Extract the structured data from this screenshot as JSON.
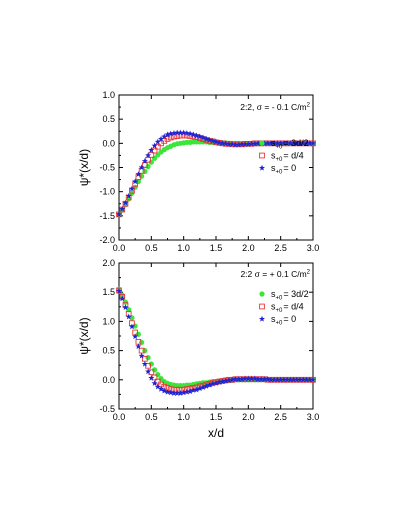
{
  "chart_data": [
    {
      "type": "scatter",
      "annotation": "2:2, σ = - 0.1 C/m",
      "annotation_sup": "2",
      "xlabel": "",
      "ylabel": "ψ*(x/d)",
      "xlim": [
        0.0,
        3.0
      ],
      "ylim": [
        -2.0,
        1.0
      ],
      "xticks": [
        "0.0",
        "0.5",
        "1.0",
        "1.5",
        "2.0",
        "2.5",
        "3.0"
      ],
      "yticks": [
        "-2.0",
        "-1.5",
        "-1.0",
        "-0.5",
        "0.0",
        "0.5",
        "1.0"
      ],
      "legend_position": "right",
      "series": [
        {
          "name": "s+0 = 3d/2",
          "legend_main": "s",
          "legend_sub": "+0",
          "legend_rest": "= 3d/2",
          "marker": "circle-filled",
          "color": "#39e639",
          "x": [
            0.0,
            0.05,
            0.1,
            0.15,
            0.2,
            0.25,
            0.3,
            0.35,
            0.4,
            0.45,
            0.5,
            0.55,
            0.6,
            0.65,
            0.7,
            0.75,
            0.8,
            0.85,
            0.9,
            0.95,
            1.0,
            1.05,
            1.1,
            1.15,
            1.2,
            1.25,
            1.3,
            1.35,
            1.4,
            1.45,
            1.5,
            1.55,
            1.6,
            1.65,
            1.7,
            1.75,
            1.8,
            1.85,
            1.9,
            1.95,
            2.0,
            2.05,
            2.1,
            2.15,
            2.2,
            2.25,
            2.3,
            2.35,
            2.4,
            2.45,
            2.5,
            2.55,
            2.6,
            2.65,
            2.7,
            2.75,
            2.8,
            2.85,
            2.9,
            2.95,
            3.0
          ],
          "y": [
            -1.47,
            -1.38,
            -1.27,
            -1.15,
            -1.03,
            -0.91,
            -0.79,
            -0.68,
            -0.58,
            -0.48,
            -0.39,
            -0.31,
            -0.24,
            -0.18,
            -0.13,
            -0.09,
            -0.06,
            -0.03,
            -0.01,
            0.0,
            0.01,
            0.02,
            0.02,
            0.03,
            0.03,
            0.03,
            0.03,
            0.03,
            0.02,
            0.02,
            0.02,
            0.01,
            0.01,
            0.01,
            0.0,
            0.0,
            0.0,
            0.0,
            -0.01,
            -0.01,
            -0.01,
            -0.01,
            -0.01,
            -0.01,
            0.0,
            0.0,
            0.0,
            0.0,
            0.0,
            0.0,
            0.0,
            0.0,
            0.0,
            0.0,
            0.0,
            0.0,
            0.0,
            0.0,
            0.0,
            0.0,
            0.0
          ]
        },
        {
          "name": "s+0 = d/4",
          "legend_main": "s",
          "legend_sub": "+0",
          "legend_rest": "= d/4",
          "marker": "square-open",
          "color": "#e8383a",
          "x": [
            0.0,
            0.05,
            0.1,
            0.15,
            0.2,
            0.25,
            0.3,
            0.35,
            0.4,
            0.45,
            0.5,
            0.55,
            0.6,
            0.65,
            0.7,
            0.75,
            0.8,
            0.85,
            0.9,
            0.95,
            1.0,
            1.05,
            1.1,
            1.15,
            1.2,
            1.25,
            1.3,
            1.35,
            1.4,
            1.45,
            1.5,
            1.55,
            1.6,
            1.65,
            1.7,
            1.75,
            1.8,
            1.85,
            1.9,
            1.95,
            2.0,
            2.05,
            2.1,
            2.15,
            2.2,
            2.25,
            2.3,
            2.35,
            2.4,
            2.45,
            2.5,
            2.55,
            2.6,
            2.65,
            2.7,
            2.75,
            2.8,
            2.85,
            2.9,
            2.95,
            3.0
          ],
          "y": [
            -1.47,
            -1.37,
            -1.25,
            -1.12,
            -0.98,
            -0.84,
            -0.7,
            -0.57,
            -0.45,
            -0.34,
            -0.24,
            -0.15,
            -0.07,
            0.0,
            0.05,
            0.09,
            0.12,
            0.14,
            0.15,
            0.16,
            0.16,
            0.16,
            0.15,
            0.14,
            0.13,
            0.11,
            0.09,
            0.07,
            0.05,
            0.04,
            0.02,
            0.01,
            0.0,
            -0.01,
            -0.01,
            -0.02,
            -0.02,
            -0.02,
            -0.02,
            -0.01,
            -0.01,
            -0.01,
            0.0,
            0.0,
            0.0,
            0.0,
            0.0,
            0.0,
            0.0,
            0.0,
            0.0,
            0.0,
            0.0,
            0.0,
            0.0,
            0.0,
            0.0,
            0.0,
            0.0,
            0.0,
            0.0
          ]
        },
        {
          "name": "s+0 = 0",
          "legend_main": "s",
          "legend_sub": "+0",
          "legend_rest": "= 0",
          "marker": "star-filled",
          "color": "#1f23d6",
          "x": [
            0.0,
            0.05,
            0.1,
            0.15,
            0.2,
            0.25,
            0.3,
            0.35,
            0.4,
            0.45,
            0.5,
            0.55,
            0.6,
            0.65,
            0.7,
            0.75,
            0.8,
            0.85,
            0.9,
            0.95,
            1.0,
            1.05,
            1.1,
            1.15,
            1.2,
            1.25,
            1.3,
            1.35,
            1.4,
            1.45,
            1.5,
            1.55,
            1.6,
            1.65,
            1.7,
            1.75,
            1.8,
            1.85,
            1.9,
            1.95,
            2.0,
            2.05,
            2.1,
            2.15,
            2.2,
            2.25,
            2.3,
            2.35,
            2.4,
            2.45,
            2.5,
            2.55,
            2.6,
            2.65,
            2.7,
            2.75,
            2.8,
            2.85,
            2.9,
            2.95,
            3.0
          ],
          "y": [
            -1.47,
            -1.36,
            -1.23,
            -1.09,
            -0.94,
            -0.79,
            -0.64,
            -0.5,
            -0.37,
            -0.25,
            -0.14,
            -0.05,
            0.03,
            0.09,
            0.14,
            0.18,
            0.2,
            0.21,
            0.22,
            0.22,
            0.22,
            0.21,
            0.2,
            0.18,
            0.16,
            0.14,
            0.12,
            0.09,
            0.07,
            0.05,
            0.03,
            0.01,
            0.0,
            -0.01,
            -0.02,
            -0.02,
            -0.03,
            -0.03,
            -0.02,
            -0.02,
            -0.02,
            -0.01,
            -0.01,
            0.0,
            0.0,
            0.0,
            0.0,
            0.0,
            0.0,
            0.0,
            0.0,
            0.0,
            0.0,
            0.0,
            0.0,
            0.0,
            0.0,
            0.0,
            0.0,
            0.0,
            0.0
          ]
        }
      ]
    },
    {
      "type": "scatter",
      "annotation": "2:2 σ = + 0.1 C/m",
      "annotation_sup": "2",
      "xlabel": "x/d",
      "ylabel": "ψ*(x/d)",
      "xlim": [
        0.0,
        3.0
      ],
      "ylim": [
        -0.5,
        2.0
      ],
      "xticks": [
        "0.0",
        "0.5",
        "1.0",
        "1.5",
        "2.0",
        "2.5",
        "3.0"
      ],
      "yticks": [
        "-0.5",
        "0.0",
        "0.5",
        "1.0",
        "1.5",
        "2.0"
      ],
      "legend_position": "right",
      "series": [
        {
          "name": "s+0 = 3d/2",
          "legend_main": "s",
          "legend_sub": "+0",
          "legend_rest": "= 3d/2",
          "marker": "circle-filled",
          "color": "#39e639",
          "x": [
            0.0,
            0.05,
            0.1,
            0.15,
            0.2,
            0.25,
            0.3,
            0.35,
            0.4,
            0.45,
            0.5,
            0.55,
            0.6,
            0.65,
            0.7,
            0.75,
            0.8,
            0.85,
            0.9,
            0.95,
            1.0,
            1.05,
            1.1,
            1.15,
            1.2,
            1.25,
            1.3,
            1.35,
            1.4,
            1.45,
            1.5,
            1.55,
            1.6,
            1.65,
            1.7,
            1.75,
            1.8,
            1.85,
            1.9,
            1.95,
            2.0,
            2.05,
            2.1,
            2.15,
            2.2,
            2.25,
            2.3,
            2.35,
            2.4,
            2.45,
            2.5,
            2.55,
            2.6,
            2.65,
            2.7,
            2.75,
            2.8,
            2.85,
            2.9,
            2.95,
            3.0
          ],
          "y": [
            1.55,
            1.45,
            1.33,
            1.2,
            1.06,
            0.92,
            0.78,
            0.64,
            0.5,
            0.38,
            0.27,
            0.17,
            0.09,
            0.02,
            -0.03,
            -0.06,
            -0.08,
            -0.09,
            -0.1,
            -0.1,
            -0.1,
            -0.09,
            -0.09,
            -0.08,
            -0.07,
            -0.06,
            -0.05,
            -0.05,
            -0.04,
            -0.03,
            -0.03,
            -0.02,
            -0.02,
            -0.01,
            -0.01,
            -0.01,
            0.0,
            0.0,
            0.0,
            0.0,
            0.0,
            0.0,
            0.0,
            0.0,
            0.0,
            0.0,
            0.0,
            0.0,
            0.0,
            0.0,
            0.0,
            0.0,
            0.0,
            0.0,
            0.0,
            0.0,
            0.0,
            0.0,
            0.0,
            0.0,
            0.0
          ]
        },
        {
          "name": "s+0 = d/4",
          "legend_main": "s",
          "legend_sub": "+0",
          "legend_rest": "= d/4",
          "marker": "square-open",
          "color": "#e8383a",
          "x": [
            0.0,
            0.05,
            0.1,
            0.15,
            0.2,
            0.25,
            0.3,
            0.35,
            0.4,
            0.45,
            0.5,
            0.55,
            0.6,
            0.65,
            0.7,
            0.75,
            0.8,
            0.85,
            0.9,
            0.95,
            1.0,
            1.05,
            1.1,
            1.15,
            1.2,
            1.25,
            1.3,
            1.35,
            1.4,
            1.45,
            1.5,
            1.55,
            1.6,
            1.65,
            1.7,
            1.75,
            1.8,
            1.85,
            1.9,
            1.95,
            2.0,
            2.05,
            2.1,
            2.15,
            2.2,
            2.25,
            2.3,
            2.35,
            2.4,
            2.45,
            2.5,
            2.55,
            2.6,
            2.65,
            2.7,
            2.75,
            2.8,
            2.85,
            2.9,
            2.95,
            3.0
          ],
          "y": [
            1.53,
            1.42,
            1.28,
            1.13,
            0.97,
            0.81,
            0.65,
            0.5,
            0.36,
            0.24,
            0.13,
            0.04,
            -0.03,
            -0.08,
            -0.12,
            -0.14,
            -0.16,
            -0.17,
            -0.17,
            -0.17,
            -0.17,
            -0.16,
            -0.15,
            -0.14,
            -0.13,
            -0.11,
            -0.1,
            -0.08,
            -0.07,
            -0.05,
            -0.04,
            -0.03,
            -0.02,
            -0.01,
            0.0,
            0.0,
            0.01,
            0.01,
            0.01,
            0.01,
            0.01,
            0.01,
            0.01,
            0.01,
            0.01,
            0.01,
            0.0,
            0.0,
            0.0,
            0.0,
            0.0,
            0.0,
            0.0,
            0.0,
            0.0,
            0.0,
            0.0,
            0.0,
            0.0,
            0.0,
            0.0
          ]
        },
        {
          "name": "s+0 = 0",
          "legend_main": "s",
          "legend_sub": "+0",
          "legend_rest": "= 0",
          "marker": "star-filled",
          "color": "#1f23d6",
          "x": [
            0.0,
            0.05,
            0.1,
            0.15,
            0.2,
            0.25,
            0.3,
            0.35,
            0.4,
            0.45,
            0.5,
            0.55,
            0.6,
            0.65,
            0.7,
            0.75,
            0.8,
            0.85,
            0.9,
            0.95,
            1.0,
            1.05,
            1.1,
            1.15,
            1.2,
            1.25,
            1.3,
            1.35,
            1.4,
            1.45,
            1.5,
            1.55,
            1.6,
            1.65,
            1.7,
            1.75,
            1.8,
            1.85,
            1.9,
            1.95,
            2.0,
            2.05,
            2.1,
            2.15,
            2.2,
            2.25,
            2.3,
            2.35,
            2.4,
            2.45,
            2.5,
            2.55,
            2.6,
            2.65,
            2.7,
            2.75,
            2.8,
            2.85,
            2.9,
            2.95,
            3.0
          ],
          "y": [
            1.52,
            1.39,
            1.24,
            1.08,
            0.91,
            0.74,
            0.57,
            0.41,
            0.27,
            0.14,
            0.03,
            -0.06,
            -0.12,
            -0.16,
            -0.19,
            -0.21,
            -0.22,
            -0.23,
            -0.23,
            -0.23,
            -0.22,
            -0.21,
            -0.2,
            -0.18,
            -0.17,
            -0.15,
            -0.13,
            -0.11,
            -0.09,
            -0.07,
            -0.06,
            -0.04,
            -0.03,
            -0.02,
            -0.01,
            0.0,
            0.01,
            0.01,
            0.01,
            0.02,
            0.02,
            0.02,
            0.02,
            0.01,
            0.01,
            0.01,
            0.01,
            0.0,
            0.0,
            0.0,
            0.0,
            0.0,
            0.0,
            0.0,
            0.0,
            0.0,
            0.0,
            0.0,
            0.0,
            0.0,
            0.0
          ]
        }
      ]
    }
  ]
}
